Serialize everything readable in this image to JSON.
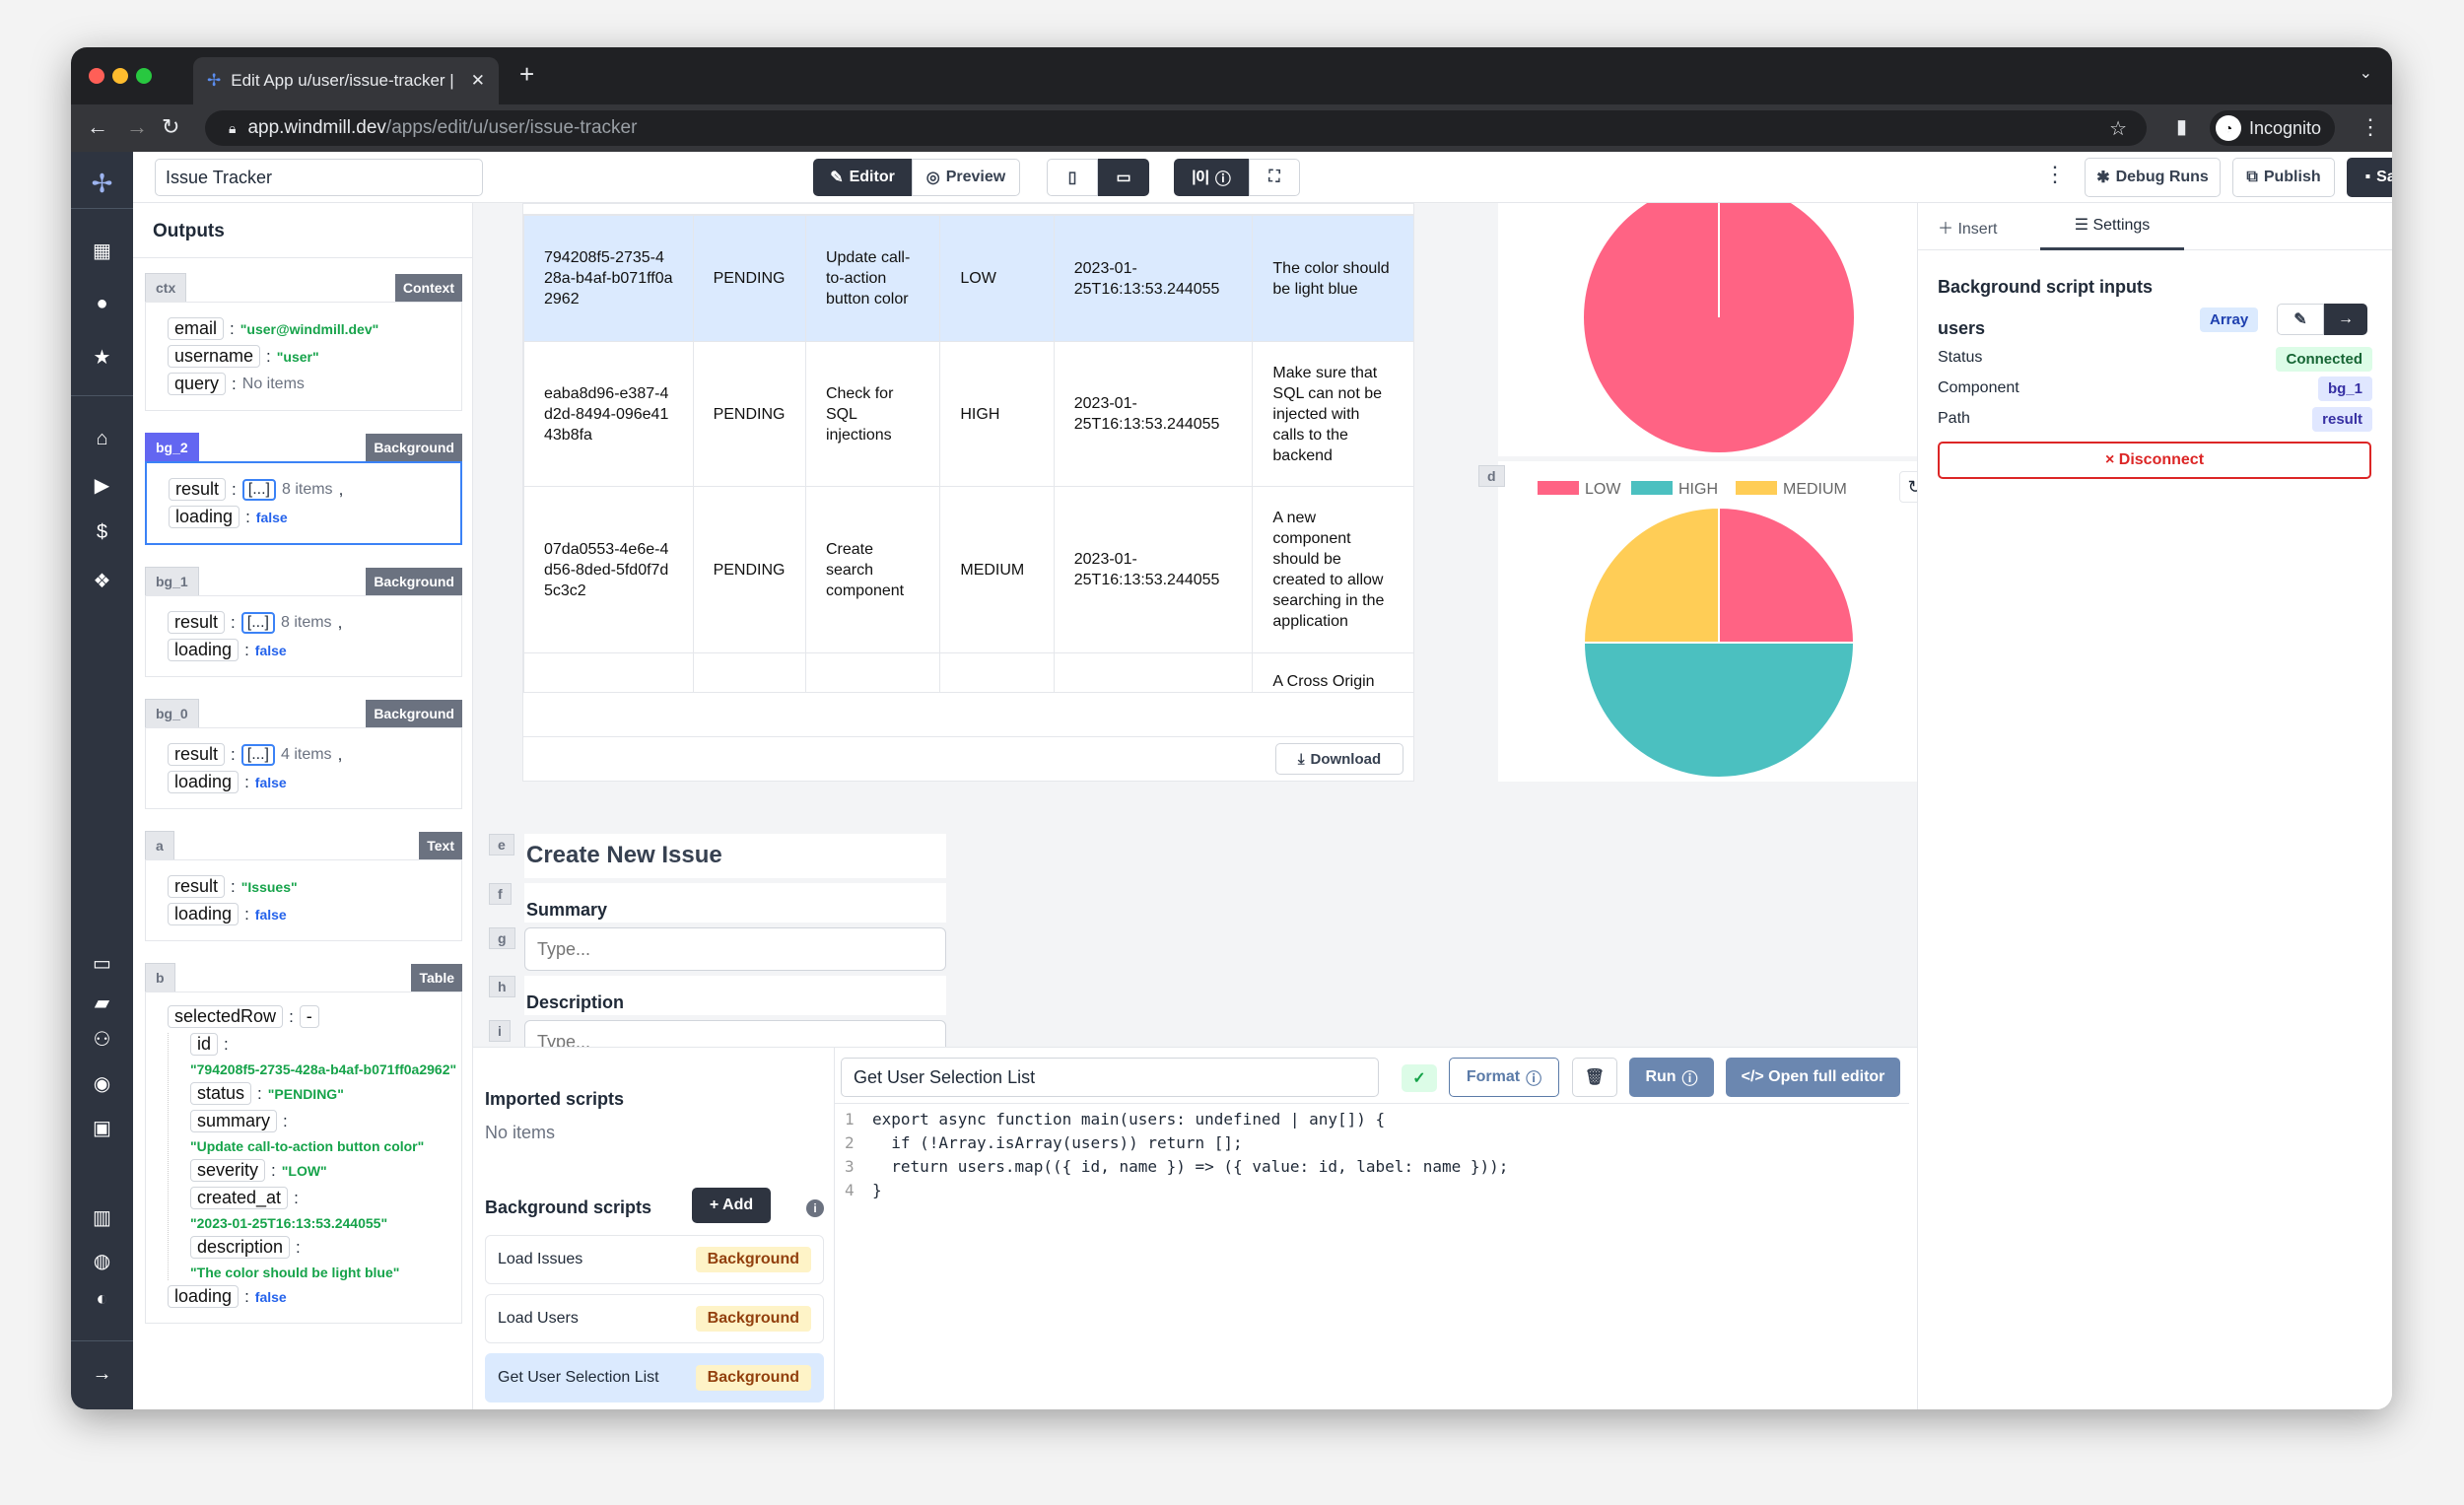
{
  "browser": {
    "tab_title": "Edit App u/user/issue-tracker |",
    "url_domain": "app.windmill.dev",
    "url_path": "/apps/edit/u/user/issue-tracker",
    "profile": "Incognito"
  },
  "header": {
    "app_name": "Issue Tracker",
    "editor": "Editor",
    "preview": "Preview",
    "debug_runs": "Debug Runs",
    "publish": "Publish",
    "save": "Save"
  },
  "outputs": {
    "title": "Outputs",
    "ctx": {
      "id": "ctx",
      "type": "Context",
      "email_key": "email",
      "email": "\"user@windmill.dev\"",
      "username_key": "username",
      "username": "\"user\"",
      "query_key": "query",
      "query": "No items"
    },
    "bg_2": {
      "id": "bg_2",
      "type": "Background",
      "result_key": "result",
      "result": "[...]",
      "count": "8 items",
      "loading_key": "loading",
      "loading": "false"
    },
    "bg_1": {
      "id": "bg_1",
      "type": "Background",
      "result_key": "result",
      "result": "[...]",
      "count": "8 items",
      "loading_key": "loading",
      "loading": "false"
    },
    "bg_0": {
      "id": "bg_0",
      "type": "Background",
      "result_key": "result",
      "result": "[...]",
      "count": "4 items",
      "loading_key": "loading",
      "loading": "false"
    },
    "a": {
      "id": "a",
      "type": "Text",
      "result_key": "result",
      "result": "\"Issues\"",
      "loading_key": "loading",
      "loading": "false"
    },
    "b": {
      "id": "b",
      "type": "Table",
      "selected_key": "selectedRow",
      "selected_val": "-",
      "fields": [
        {
          "key": "id",
          "value": "\"794208f5-2735-428a-b4af-b071ff0a2962\""
        },
        {
          "key": "status",
          "value": "\"PENDING\""
        },
        {
          "key": "summary",
          "value": "\"Update call-to-action button color\""
        },
        {
          "key": "severity",
          "value": "\"LOW\""
        },
        {
          "key": "created_at",
          "value": "\"2023-01-25T16:13:53.244055\""
        },
        {
          "key": "description",
          "value": "\"The color should be light blue\""
        }
      ],
      "loading_key": "loading",
      "loading": "false"
    }
  },
  "table": {
    "rows": [
      [
        "794208f5-2735-428a-b4af-b071ff0a2962",
        "PENDING",
        "Update call-to-action button color",
        "LOW",
        "2023-01-25T16:13:53.244055",
        "The color should be light blue"
      ],
      [
        "eaba8d96-e387-4d2d-8494-096e4143b8fa",
        "PENDING",
        "Check for SQL injections",
        "HIGH",
        "2023-01-25T16:13:53.244055",
        "Make sure that SQL can not be injected with calls to the backend"
      ],
      [
        "07da0553-4e6e-4d56-8ded-5fd0f7d5c3c2",
        "PENDING",
        "Create search component",
        "MEDIUM",
        "2023-01-25T16:13:53.244055",
        "A new component should be created to allow searching in the application"
      ],
      [
        "",
        "",
        "",
        "",
        "",
        "A Cross Origin"
      ]
    ],
    "download": "Download"
  },
  "chart_data": [
    {
      "type": "pie",
      "categories": [
        "LOW"
      ],
      "values": [
        1
      ],
      "colors": [
        "#ff6384"
      ]
    },
    {
      "type": "pie",
      "categories": [
        "LOW",
        "HIGH",
        "MEDIUM"
      ],
      "values": [
        1,
        2,
        1
      ],
      "colors": [
        "#ff6384",
        "#4bc0c0",
        "#ffcd56"
      ],
      "legend": "top",
      "component_id": "d"
    }
  ],
  "form": {
    "title": "Create New Issue",
    "title_id": "e",
    "summary_label": "Summary",
    "summary_id": "f",
    "summary_placeholder": "Type...",
    "summary_input_id": "g",
    "description_label": "Description",
    "description_id": "h",
    "description_placeholder": "Type...",
    "description_input_id": "i"
  },
  "scripts": {
    "imported_title": "Imported scripts",
    "imported_empty": "No items",
    "background_title": "Background scripts",
    "add": "+ Add",
    "items": [
      {
        "name": "Load Issues",
        "tag": "Background"
      },
      {
        "name": "Load Users",
        "tag": "Background"
      },
      {
        "name": "Get User Selection List",
        "tag": "Background"
      }
    ]
  },
  "editor": {
    "script_name": "Get User Selection List",
    "format": "Format",
    "run": "Run",
    "open_full": "</> Open full editor",
    "lines": [
      "export async function main(users: undefined | any[]) {",
      "  if (!Array.isArray(users)) return [];",
      "  return users.map(({ id, name }) => ({ value: id, label: name }));",
      "}"
    ]
  },
  "right_panel": {
    "insert": "Insert",
    "settings": "Settings",
    "section_title": "Background script inputs",
    "input_name": "users",
    "input_type": "Array",
    "status_label": "Status",
    "status": "Connected",
    "component_label": "Component",
    "component": "bg_1",
    "path_label": "Path",
    "path": "result",
    "disconnect": "× Disconnect"
  }
}
